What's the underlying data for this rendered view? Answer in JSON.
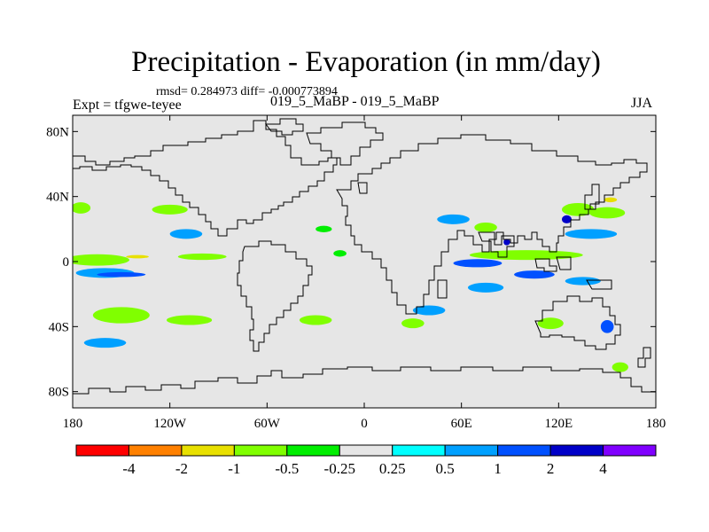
{
  "title": "Precipitation - Evaporation (in mm/day)",
  "stats": "rmsd= 0.284973 diff= -0.000773894",
  "expt": "Expt = tfgwe-teyee",
  "case": "019_5_MaBP - 019_5_MaBP",
  "season": "JJA",
  "chart_data": {
    "type": "heatmap",
    "variable": "Precipitation - Evaporation",
    "units": "mm/day",
    "x_range": [
      -180,
      180
    ],
    "y_range": [
      -90,
      90
    ],
    "x_ticks": [
      {
        "value": -180,
        "label": "180"
      },
      {
        "value": -120,
        "label": "120W"
      },
      {
        "value": -60,
        "label": "60W"
      },
      {
        "value": 0,
        "label": "0"
      },
      {
        "value": 60,
        "label": "60E"
      },
      {
        "value": 120,
        "label": "120E"
      },
      {
        "value": 180,
        "label": "180"
      }
    ],
    "y_ticks": [
      {
        "value": 80,
        "label": "80N"
      },
      {
        "value": 40,
        "label": "40N"
      },
      {
        "value": 0,
        "label": "0"
      },
      {
        "value": -40,
        "label": "40S"
      },
      {
        "value": -80,
        "label": "80S"
      }
    ],
    "levels": [
      "-4",
      "-2",
      "-1",
      "-0.5",
      "-0.25",
      "0.25",
      "0.5",
      "1",
      "2",
      "4"
    ],
    "colors": [
      "#ff0000",
      "#ff8000",
      "#e8e000",
      "#80ff00",
      "#00ee00",
      "#e6e6e6",
      "#00ffff",
      "#00a0ff",
      "#0050ff",
      "#0000c8",
      "#8000ff"
    ],
    "regions": [
      {
        "level": "-0.5",
        "lon": -175,
        "lat": 33,
        "w": 12,
        "h": 7
      },
      {
        "level": "-0.5",
        "lon": -120,
        "lat": 32,
        "w": 22,
        "h": 6
      },
      {
        "level": "-0.5",
        "lon": -165,
        "lat": 1,
        "w": 40,
        "h": 7
      },
      {
        "level": "-0.5",
        "lon": -100,
        "lat": 3,
        "w": 30,
        "h": 4
      },
      {
        "level": "-0.5",
        "lon": -150,
        "lat": -33,
        "w": 35,
        "h": 10
      },
      {
        "level": "-0.5",
        "lon": -108,
        "lat": -36,
        "w": 28,
        "h": 6
      },
      {
        "level": "-0.5",
        "lon": -30,
        "lat": -36,
        "w": 20,
        "h": 6
      },
      {
        "level": "-0.5",
        "lon": 30,
        "lat": -38,
        "w": 14,
        "h": 6
      },
      {
        "level": "-0.5",
        "lon": 132,
        "lat": 32,
        "w": 20,
        "h": 8
      },
      {
        "level": "-0.5",
        "lon": 150,
        "lat": 30,
        "w": 22,
        "h": 7
      },
      {
        "level": "-0.5",
        "lon": 100,
        "lat": 4,
        "w": 70,
        "h": 6
      },
      {
        "level": "-0.5",
        "lon": 75,
        "lat": 21,
        "w": 14,
        "h": 6
      },
      {
        "level": "-0.5",
        "lon": 115,
        "lat": -38,
        "w": 16,
        "h": 7
      },
      {
        "level": "-0.5",
        "lon": 158,
        "lat": -65,
        "w": 10,
        "h": 6
      },
      {
        "level": "-1",
        "lon": 152,
        "lat": 38,
        "w": 8,
        "h": 3
      },
      {
        "level": "-1",
        "lon": -140,
        "lat": 3,
        "w": 14,
        "h": 2
      },
      {
        "level": "0.5",
        "lon": -160,
        "lat": -7,
        "w": 36,
        "h": 6
      },
      {
        "level": "0.5",
        "lon": -110,
        "lat": 17,
        "w": 20,
        "h": 6
      },
      {
        "level": "0.5",
        "lon": 55,
        "lat": 26,
        "w": 20,
        "h": 6
      },
      {
        "level": "0.5",
        "lon": 140,
        "lat": 17,
        "w": 32,
        "h": 6
      },
      {
        "level": "0.5",
        "lon": 75,
        "lat": -16,
        "w": 22,
        "h": 6
      },
      {
        "level": "0.5",
        "lon": 135,
        "lat": -12,
        "w": 22,
        "h": 5
      },
      {
        "level": "0.5",
        "lon": 40,
        "lat": -30,
        "w": 20,
        "h": 6
      },
      {
        "level": "0.5",
        "lon": -160,
        "lat": -50,
        "w": 26,
        "h": 6
      },
      {
        "level": "1",
        "lon": -150,
        "lat": -8,
        "w": 30,
        "h": 3
      },
      {
        "level": "1",
        "lon": 70,
        "lat": -1,
        "w": 30,
        "h": 5
      },
      {
        "level": "1",
        "lon": 105,
        "lat": -8,
        "w": 25,
        "h": 5
      },
      {
        "level": "1",
        "lon": 150,
        "lat": -40,
        "w": 8,
        "h": 8
      },
      {
        "level": "2",
        "lon": 125,
        "lat": 26,
        "w": 6,
        "h": 5
      },
      {
        "level": "2",
        "lon": 88,
        "lat": 12,
        "w": 4,
        "h": 4
      },
      {
        "level": "-0.25",
        "lon": -25,
        "lat": 20,
        "w": 10,
        "h": 4
      },
      {
        "level": "-0.25",
        "lon": -15,
        "lat": 5,
        "w": 8,
        "h": 4
      }
    ]
  }
}
